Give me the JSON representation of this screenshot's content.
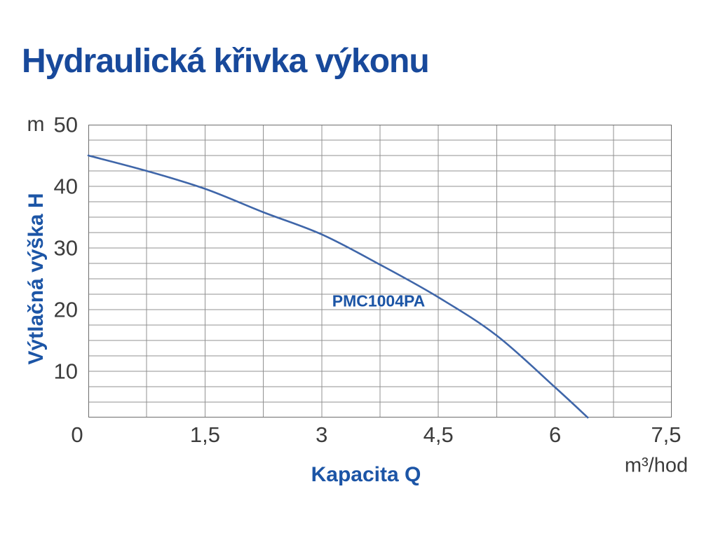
{
  "chart_data": {
    "type": "line",
    "title": "Hydraulická křivka výkonu",
    "xlabel": "Kapacita Q",
    "ylabel": "Výtlačná výška H",
    "x_unit": "m³/hod",
    "y_unit": "m",
    "xlim": [
      0,
      7.5
    ],
    "ylim": [
      2.5,
      50
    ],
    "x_grid_step": 0.75,
    "y_grid_step": 2.5,
    "grid": true,
    "x_tick_labels": [
      "0",
      "1,5",
      "3",
      "4,5",
      "6",
      "7,5"
    ],
    "x_tick_values": [
      0,
      1.5,
      3,
      4.5,
      6,
      7.5
    ],
    "y_tick_labels": [
      "50",
      "40",
      "30",
      "20",
      "10"
    ],
    "y_tick_values": [
      50,
      40,
      30,
      20,
      10
    ],
    "series": [
      {
        "name": "PMC1004PA",
        "points": [
          {
            "q": 0.0,
            "h": 45.0
          },
          {
            "q": 0.75,
            "h": 42.5
          },
          {
            "q": 1.5,
            "h": 39.6
          },
          {
            "q": 2.25,
            "h": 35.8
          },
          {
            "q": 3.0,
            "h": 32.2
          },
          {
            "q": 3.75,
            "h": 27.3
          },
          {
            "q": 4.5,
            "h": 22.0
          },
          {
            "q": 5.25,
            "h": 15.8
          },
          {
            "q": 6.0,
            "h": 7.4
          },
          {
            "q": 6.42,
            "h": 2.5
          }
        ]
      }
    ],
    "colors": {
      "title_blue": "#18499b",
      "label_blue": "#1c55a6",
      "curve": "#3f66a9",
      "grid": "#919191",
      "plot_border": "#6d6d6d",
      "tick_text": "#3c3c3c",
      "background": "#ffffff"
    }
  }
}
